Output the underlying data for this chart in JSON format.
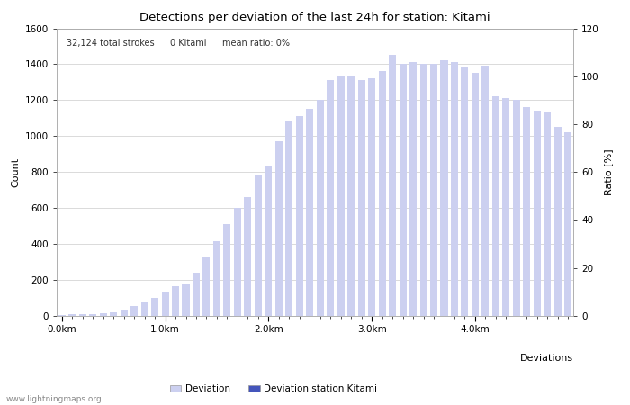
{
  "title": "Detections per deviation of the last 24h for station: Kitami",
  "xlabel": "Deviations",
  "ylabel_left": "Count",
  "ylabel_right": "Ratio [%]",
  "annotation_parts": [
    "32,124 total strokes",
    "0 Kitami",
    "mean ratio: 0%"
  ],
  "watermark": "www.lightningmaps.org",
  "bar_color": "#ccd0f0",
  "bar_station_color": "#4455bb",
  "line_color": "#bb00bb",
  "ylim_left": [
    0,
    1600
  ],
  "ylim_right": [
    0,
    120
  ],
  "yticks_left": [
    0,
    200,
    400,
    600,
    800,
    1000,
    1200,
    1400,
    1600
  ],
  "yticks_right": [
    0,
    20,
    40,
    60,
    80,
    100,
    120
  ],
  "xtick_labels": [
    "0.0km",
    "1.0km",
    "2.0km",
    "3.0km",
    "4.0km"
  ],
  "xtick_positions": [
    0,
    10,
    20,
    30,
    40
  ],
  "num_bars": 50,
  "bar_values": [
    5,
    8,
    10,
    12,
    15,
    20,
    35,
    55,
    80,
    100,
    135,
    165,
    175,
    240,
    325,
    415,
    510,
    600,
    660,
    780,
    830,
    970,
    1080,
    1110,
    1150,
    1200,
    1310,
    1330,
    1330,
    1310,
    1320,
    1360,
    1450,
    1400,
    1410,
    1400,
    1400,
    1420,
    1410,
    1380,
    1350,
    1390,
    1220,
    1210,
    1200,
    1160,
    1140,
    1130,
    1050,
    1020
  ],
  "station_bar_indices": [],
  "station_bar_values": [],
  "line_values": [],
  "title_fontsize": 9.5,
  "axis_fontsize": 8,
  "tick_fontsize": 7.5,
  "annotation_fontsize": 7,
  "legend_fontsize": 7.5,
  "watermark_fontsize": 6.5
}
